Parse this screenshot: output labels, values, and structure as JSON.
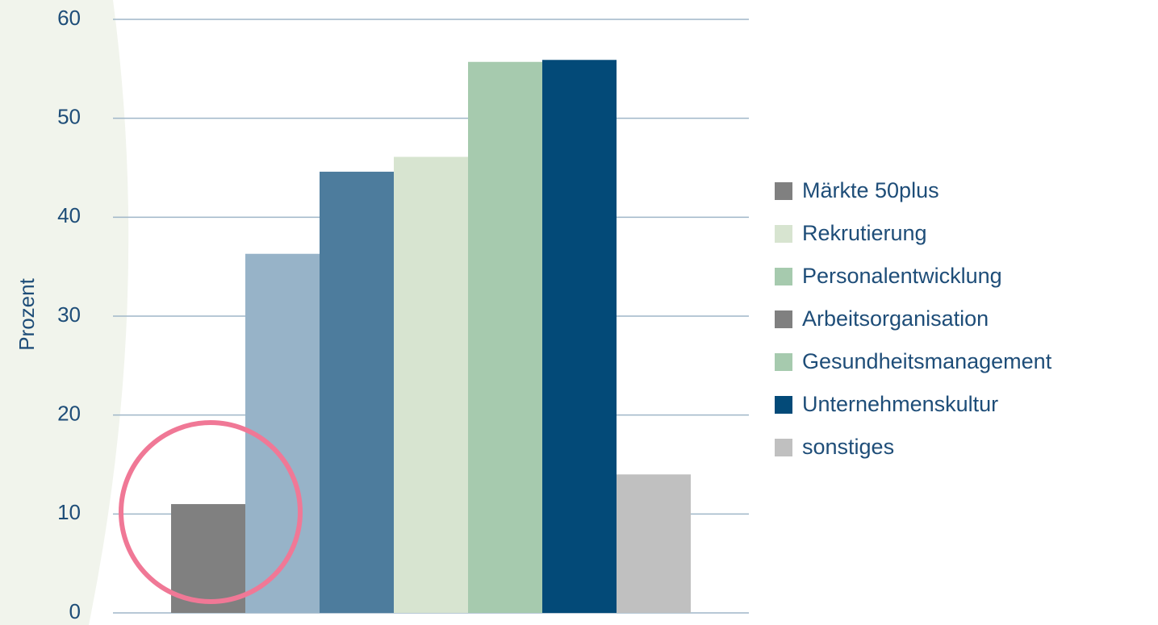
{
  "chart_data": {
    "type": "bar",
    "y_label": "Prozent",
    "ylim": [
      0,
      60
    ],
    "yticks": [
      0,
      10,
      20,
      30,
      40,
      50,
      60
    ],
    "grid": true,
    "legend_position": "right",
    "series": [
      {
        "name": "Märkte 50plus",
        "color": "#808080",
        "legend_color": "#808080",
        "values": [
          11
        ]
      },
      {
        "name": "Rekrutierung",
        "color": "#97b3c8",
        "legend_color": "#d7e4d0",
        "values": [
          36.3
        ]
      },
      {
        "name": "Personalentwicklung",
        "color": "#4d7c9d",
        "legend_color": "#a6caae",
        "values": [
          44.6
        ]
      },
      {
        "name": "Arbeitsorganisation",
        "color": "#d7e4d0",
        "legend_color": "#808080",
        "values": [
          46.1
        ]
      },
      {
        "name": "Gesundheitsmanagement",
        "color": "#a6caae",
        "legend_color": "#a6caae",
        "values": [
          55.7
        ]
      },
      {
        "name": "Unternehmenskultur",
        "color": "#034a78",
        "legend_color": "#034a78",
        "values": [
          55.9
        ]
      },
      {
        "name": "sonstiges",
        "color": "#c0c0c0",
        "legend_color": "#c0c0c0",
        "values": [
          14
        ]
      }
    ]
  }
}
